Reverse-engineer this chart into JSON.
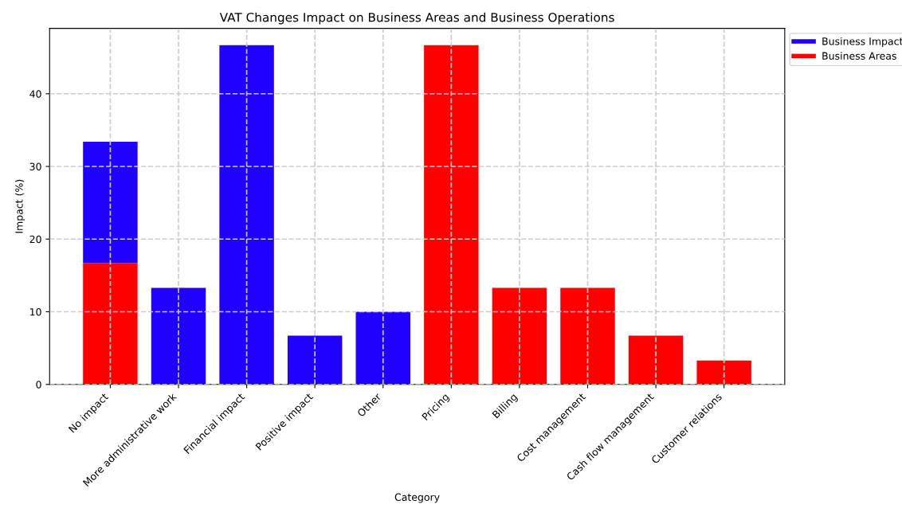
{
  "chart_data": {
    "type": "bar",
    "title": "VAT Changes Impact on Business Areas and Business Operations",
    "xlabel": "Category",
    "ylabel": "Impact (%)",
    "categories": [
      "No impact",
      "More administrative work",
      "Financial impact",
      "Positive impact",
      "Other",
      "Pricing",
      "Billing",
      "Cost management",
      "Cash flow management",
      "Customer relations"
    ],
    "stacked": true,
    "series": [
      {
        "name": "Business Areas",
        "color": "#ff0000",
        "values": [
          16.7,
          null,
          null,
          null,
          null,
          46.7,
          13.3,
          13.3,
          6.7,
          3.3
        ]
      },
      {
        "name": "Business Impact",
        "color": "#2000ff",
        "values": [
          16.7,
          13.3,
          46.7,
          6.7,
          10,
          null,
          null,
          null,
          null,
          null
        ]
      }
    ],
    "ylim": [
      0,
      49
    ],
    "yticks": [
      0,
      10,
      20,
      30,
      40
    ],
    "grid": true,
    "line_style": "dashed",
    "legend": "top right"
  }
}
